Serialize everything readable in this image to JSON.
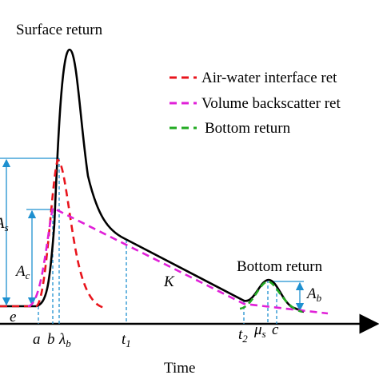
{
  "title": "Surface return",
  "legend": [
    "Air-water interface ret",
    "Volume backscatter ret",
    "Bottom return"
  ],
  "annotation": "Bottom return",
  "labels": {
    "As": {
      "main": "A",
      "sub": "s"
    },
    "Ac": {
      "main": "A",
      "sub": "c"
    },
    "Ab": {
      "main": "A",
      "sub": "b"
    },
    "e": "e",
    "a": "a",
    "b": "b",
    "lambda_b": {
      "main": "λ",
      "sub": "b"
    },
    "t1": {
      "main": "t",
      "sub": "1"
    },
    "t2": {
      "main": "t",
      "sub": "2"
    },
    "mu_s": {
      "main": "μ",
      "sub": "s"
    },
    "c": "c",
    "K": "K"
  },
  "x_axis_label": "Time"
}
